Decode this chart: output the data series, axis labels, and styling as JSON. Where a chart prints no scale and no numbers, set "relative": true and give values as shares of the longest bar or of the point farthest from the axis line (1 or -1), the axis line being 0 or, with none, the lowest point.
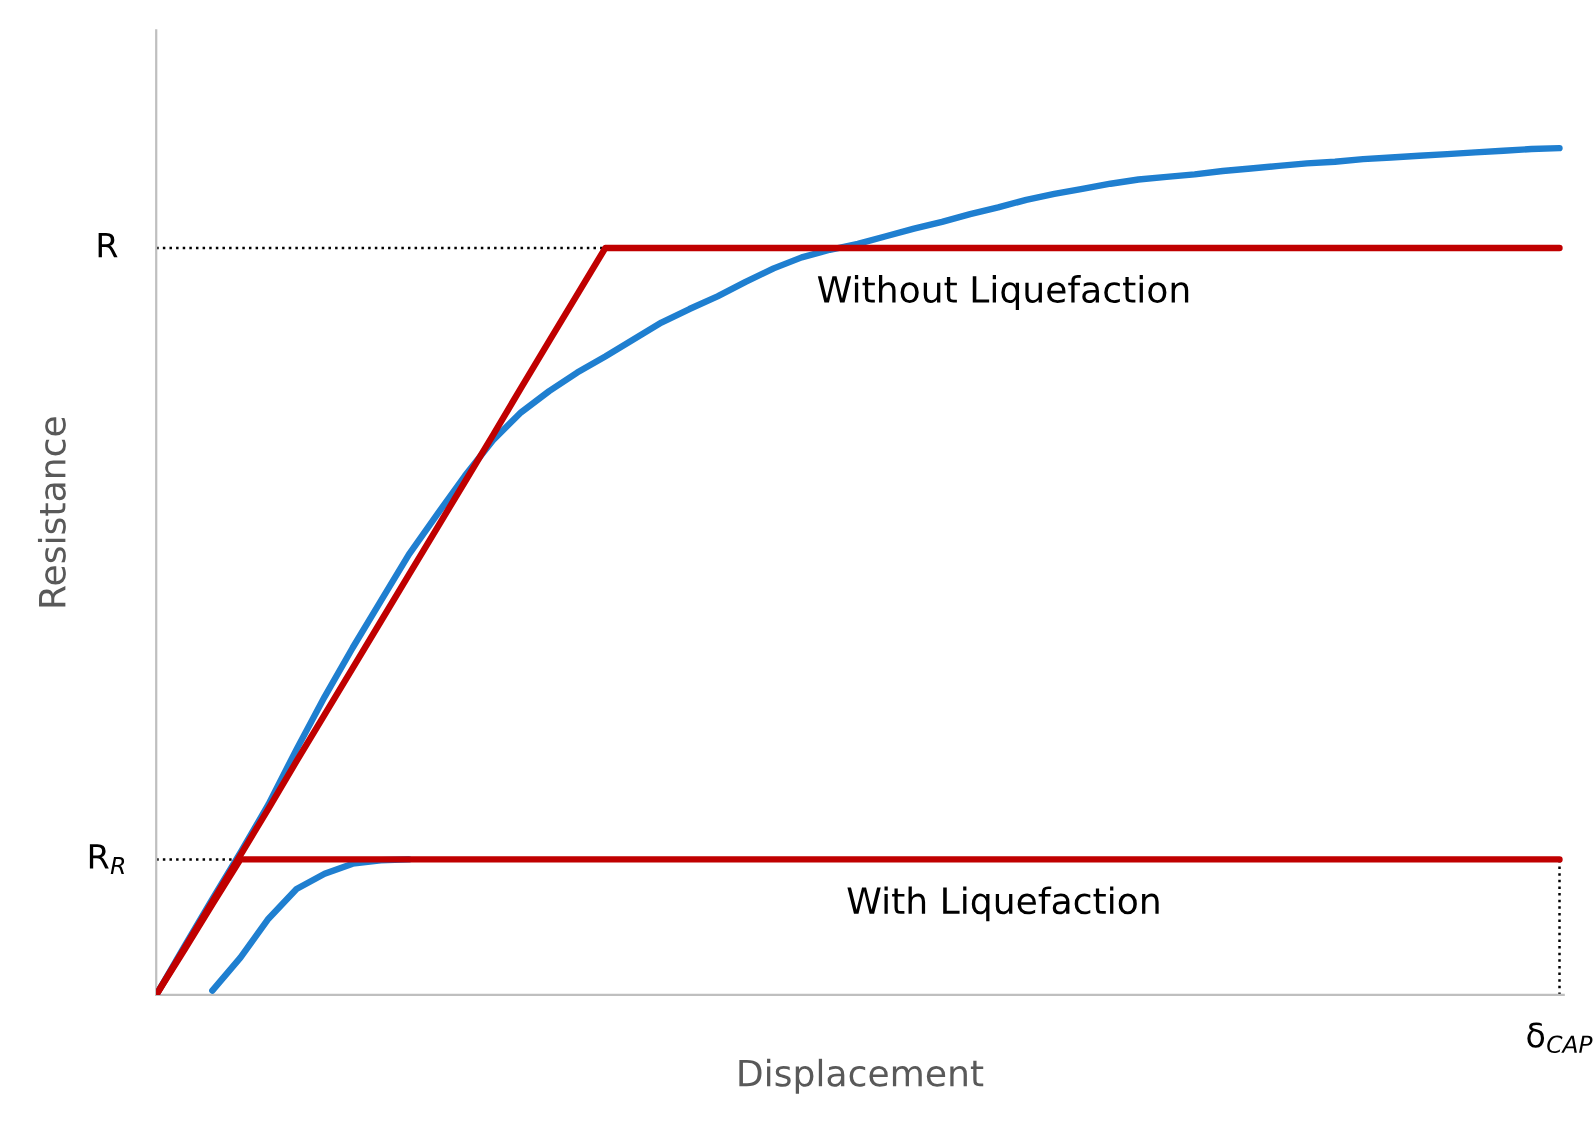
{
  "chart_data": {
    "type": "line",
    "relative": true,
    "xlabel": "Displacement",
    "ylabel": "Resistance",
    "categories": [
      null,
      null,
      null,
      null,
      null,
      null,
      null,
      null,
      null,
      null,
      null,
      null,
      null,
      null,
      null,
      null,
      null,
      null,
      null,
      null,
      null,
      null,
      null,
      null,
      null,
      null,
      null,
      null,
      null,
      null,
      null,
      null,
      null,
      null,
      null,
      null,
      null,
      null,
      null,
      null,
      null,
      null,
      null,
      null,
      null,
      null,
      null,
      null,
      null,
      null,
      null
    ],
    "series": [
      {
        "color": "#1f7fd0",
        "values": [
          0.0,
          0.057,
          0.113,
          0.168,
          0.225,
          0.29,
          0.352,
          0.41,
          0.465,
          0.52,
          0.567,
          0.613,
          0.655,
          0.688,
          0.713,
          0.735,
          0.754,
          0.774,
          0.794,
          0.81,
          0.825,
          0.842,
          0.858,
          0.871,
          0.88,
          0.887,
          0.896,
          0.905,
          0.913,
          0.922,
          0.93,
          0.939,
          0.946,
          0.952,
          0.958,
          0.963,
          0.966,
          0.969,
          0.973,
          0.976,
          0.979,
          0.982,
          0.984,
          0.987,
          0.989,
          0.991,
          0.993,
          0.995,
          0.997,
          0.999,
          1.0
        ]
      },
      {
        "color": "#1f7fd0",
        "values": [
          null,
          null,
          0.005,
          0.044,
          0.09,
          0.125,
          0.143,
          0.155,
          0.159,
          0.16,
          null,
          null,
          null,
          null,
          null,
          null,
          null,
          null,
          null,
          null,
          null,
          null,
          null,
          null,
          null,
          null,
          null,
          null,
          null,
          null,
          null,
          null,
          null,
          null,
          null,
          null,
          null,
          null,
          null,
          null,
          null,
          null,
          null,
          null,
          null,
          null,
          null,
          null,
          null,
          null,
          null
        ]
      },
      {
        "name": "Without Liquefaction",
        "color": "#c00000",
        "values": [
          0.0,
          0.055,
          0.11,
          0.165,
          0.22,
          0.276,
          0.331,
          0.386,
          0.441,
          0.496,
          0.551,
          0.606,
          0.661,
          0.717,
          0.772,
          0.827,
          0.882,
          0.882,
          0.882,
          0.882,
          0.882,
          0.882,
          0.882,
          0.882,
          0.882,
          0.882,
          0.882,
          0.882,
          0.882,
          0.882,
          0.882,
          0.882,
          0.882,
          0.882,
          0.882,
          0.882,
          0.882,
          0.882,
          0.882,
          0.882,
          0.882,
          0.882,
          0.882,
          0.882,
          0.882,
          0.882,
          0.882,
          0.882,
          0.882,
          0.882,
          0.882
        ]
      },
      {
        "name": "With Liquefaction",
        "color": "#c00000",
        "values": [
          0.0,
          0.053,
          0.107,
          0.16,
          0.16,
          0.16,
          0.16,
          0.16,
          0.16,
          0.16,
          0.16,
          0.16,
          0.16,
          0.16,
          0.16,
          0.16,
          0.16,
          0.16,
          0.16,
          0.16,
          0.16,
          0.16,
          0.16,
          0.16,
          0.16,
          0.16,
          0.16,
          0.16,
          0.16,
          0.16,
          0.16,
          0.16,
          0.16,
          0.16,
          0.16,
          0.16,
          0.16,
          0.16,
          0.16,
          0.16,
          0.16,
          0.16,
          0.16,
          0.16,
          0.16,
          0.16,
          0.16,
          0.16,
          0.16,
          0.16,
          0.16
        ]
      }
    ],
    "ref_lines": [
      {
        "axis": "y",
        "value": 0.882,
        "label": "R",
        "color": "#000000",
        "line_style": "dotted"
      },
      {
        "axis": "y",
        "value": 0.16,
        "label": "R$_{R}$",
        "color": "#000000",
        "line_style": "dotted"
      }
    ],
    "annotations": [
      "δ$_{CAP}$"
    ],
    "grid": false,
    "legend": false,
    "marker": "none",
    "line_style": "solid"
  }
}
